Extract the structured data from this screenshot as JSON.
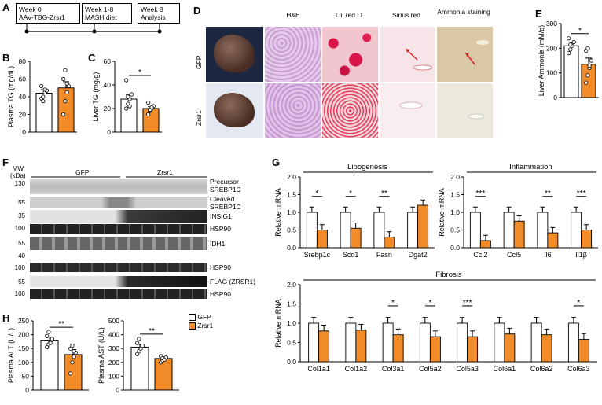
{
  "colors": {
    "gfp": "#ffffff",
    "zrsr1": "#f28c28",
    "edge": "#000000"
  },
  "panel_letters": {
    "a": "A",
    "b": "B",
    "c": "C",
    "d": "D",
    "e": "E",
    "f": "F",
    "g": "G",
    "h": "H"
  },
  "timeline": {
    "box1": {
      "line1": "Week 0",
      "line2": "AAV-TBG-Zrsr1"
    },
    "box2": {
      "line1": "Week 1-8",
      "line2": "MASH diet"
    },
    "box3": {
      "line1": "Week 8",
      "line2": "Analysis"
    }
  },
  "histology": {
    "columns": [
      "H&E",
      "Oil red O",
      "Sirius red",
      "Ammonia staining"
    ],
    "rows": [
      "GFP",
      "Zrsr1"
    ]
  },
  "western": {
    "mw_unit": "MW\n(kDa)",
    "mw_title": "MW",
    "mw_sub": "(kDa)",
    "groups": [
      "GFP",
      "Zrsr1"
    ],
    "markers": [
      "130",
      "55",
      "35",
      "100",
      "55",
      "40",
      "100",
      "55",
      "100"
    ],
    "labels": [
      "Precursor",
      "SREBP1C",
      "Cleaved",
      "SREBP1C",
      "INSIG1",
      "HSP90",
      "IDH1",
      "HSP90",
      "FLAG (ZRSR1)",
      "HSP90"
    ]
  },
  "legend": {
    "gfp": "GFP",
    "zrsr1": "Zrsr1"
  },
  "chart_data": [
    {
      "id": "B",
      "type": "bar",
      "ylabel": "Plasma TG (mg/dL)",
      "ylim": [
        0,
        80
      ],
      "yticks": [
        0,
        20,
        40,
        60,
        80
      ],
      "categories": [
        "GFP",
        "Zrsr1"
      ],
      "series": [
        {
          "values": [
            44,
            50
          ],
          "errors": [
            4,
            7
          ]
        }
      ],
      "points": [
        [
          38,
          40,
          45,
          47,
          52,
          35,
          48
        ],
        [
          20,
          35,
          45,
          52,
          60,
          70,
          55
        ]
      ],
      "significance": []
    },
    {
      "id": "C",
      "type": "bar",
      "ylabel": "Liver TG (mg/g)",
      "ylim": [
        0,
        60
      ],
      "yticks": [
        0,
        20,
        40,
        60
      ],
      "categories": [
        "GFP",
        "Zrsr1"
      ],
      "series": [
        {
          "values": [
            28,
            20
          ],
          "errors": [
            3.5,
            1.5
          ]
        }
      ],
      "points": [
        [
          20,
          24,
          28,
          32,
          44,
          30,
          22
        ],
        [
          15,
          18,
          20,
          22,
          25,
          19,
          21
        ]
      ],
      "significance": [
        "*"
      ]
    },
    {
      "id": "E",
      "type": "bar",
      "ylabel": "Liver Ammonia (mM/g)",
      "ylim": [
        0,
        300
      ],
      "yticks": [
        0,
        100,
        200,
        300
      ],
      "categories": [
        "GFP",
        "Zrsr1"
      ],
      "series": [
        {
          "values": [
            210,
            135
          ],
          "errors": [
            15,
            25
          ]
        }
      ],
      "points": [
        [
          180,
          195,
          210,
          225,
          240,
          215
        ],
        [
          60,
          90,
          120,
          150,
          190,
          200,
          130
        ]
      ],
      "significance": [
        "*"
      ]
    },
    {
      "id": "G1",
      "type": "bar",
      "title": "Lipogenesis",
      "ylabel": "Relative mRNA",
      "ylim": [
        0,
        2.0
      ],
      "yticks": [
        0.0,
        0.5,
        1.0,
        1.5,
        2.0
      ],
      "categories": [
        "Srebp1c",
        "Scd1",
        "Fasn",
        "Dgat2"
      ],
      "series": [
        {
          "name": "GFP",
          "values": [
            1.0,
            1.0,
            1.0,
            1.0
          ]
        },
        {
          "name": "Zrsr1",
          "values": [
            0.5,
            0.55,
            0.3,
            1.2
          ]
        }
      ],
      "significance": [
        "*",
        "*",
        "**",
        ""
      ]
    },
    {
      "id": "G2",
      "type": "bar",
      "title": "Inflammation",
      "ylabel": "Relative mRNA",
      "ylim": [
        0,
        2.0
      ],
      "yticks": [
        0.0,
        0.5,
        1.0,
        1.5,
        2.0
      ],
      "categories": [
        "Ccl2",
        "Ccl5",
        "Il6",
        "Il1β"
      ],
      "series": [
        {
          "name": "GFP",
          "values": [
            1.0,
            1.0,
            1.0,
            1.0
          ]
        },
        {
          "name": "Zrsr1",
          "values": [
            0.2,
            0.75,
            0.42,
            0.5
          ]
        }
      ],
      "significance": [
        "***",
        "",
        "**",
        "***"
      ]
    },
    {
      "id": "G3",
      "type": "bar",
      "title": "Fibrosis",
      "ylabel": "Relative mRNA",
      "ylim": [
        0,
        2.0
      ],
      "yticks": [
        0.0,
        0.5,
        1.0,
        1.5,
        2.0
      ],
      "categories": [
        "Col1a1",
        "Col1a2",
        "Col3a1",
        "Col5a2",
        "Col5a3",
        "Col6a1",
        "Col6a2",
        "Col6a3"
      ],
      "series": [
        {
          "name": "GFP",
          "values": [
            1.0,
            1.0,
            1.0,
            1.0,
            1.0,
            1.0,
            1.0,
            1.0
          ]
        },
        {
          "name": "Zrsr1",
          "values": [
            0.8,
            0.82,
            0.7,
            0.65,
            0.65,
            0.72,
            0.7,
            0.58
          ]
        }
      ],
      "significance": [
        "",
        "",
        "*",
        "*",
        "***",
        "",
        "",
        "*"
      ]
    },
    {
      "id": "H1",
      "type": "bar",
      "ylabel": "Plasma ALT (U/L)",
      "ylim": [
        0,
        250
      ],
      "yticks": [
        0,
        50,
        100,
        150,
        200,
        250
      ],
      "categories": [
        "GFP",
        "Zrsr1"
      ],
      "series": [
        {
          "values": [
            180,
            128
          ],
          "errors": [
            12,
            18
          ]
        }
      ],
      "points": [
        [
          155,
          165,
          175,
          185,
          195,
          210,
          170
        ],
        [
          60,
          100,
          120,
          135,
          150,
          160,
          140
        ]
      ],
      "significance": [
        "**"
      ]
    },
    {
      "id": "H2",
      "type": "bar",
      "ylabel": "Plasma AST (U/L)",
      "ylim": [
        0,
        500
      ],
      "yticks": [
        0,
        100,
        200,
        300,
        400,
        500
      ],
      "categories": [
        "GFP",
        "Zrsr1"
      ],
      "series": [
        {
          "values": [
            310,
            228
          ],
          "errors": [
            20,
            10
          ]
        }
      ],
      "points": [
        [
          260,
          280,
          300,
          320,
          340,
          370,
          300
        ],
        [
          200,
          215,
          225,
          235,
          245,
          230,
          220
        ]
      ],
      "significance": [
        "**"
      ]
    }
  ]
}
